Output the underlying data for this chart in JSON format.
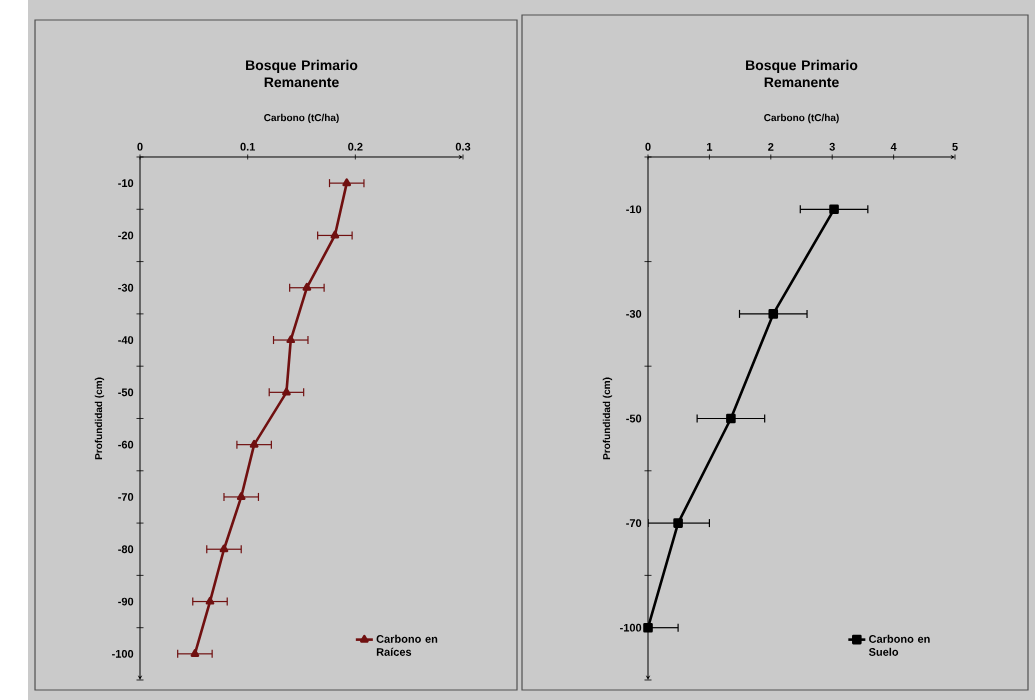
{
  "chart_data": [
    {
      "type": "line",
      "orientation": "horizontal",
      "title": "Bosque Primario Remanente",
      "xlabel": "Carbono (tC/ha)",
      "ylabel": "Profundidad (cm)",
      "categories": [
        "-10",
        "-20",
        "-30",
        "-40",
        "-50",
        "-60",
        "-70",
        "-80",
        "-90",
        "-100"
      ],
      "xlim": [
        0,
        0.3
      ],
      "xticks": [
        0,
        0.1,
        0.2,
        0.3
      ],
      "legend": "bottom right",
      "marker": "triangle",
      "grid": false,
      "series": [
        {
          "name": "Carbono en Raíces",
          "color": "#701010",
          "values": [
            0.192,
            0.181,
            0.155,
            0.14,
            0.136,
            0.106,
            0.094,
            0.078,
            0.065,
            0.051
          ],
          "errors": [
            0.016,
            0.016,
            0.016,
            0.016,
            0.016,
            0.016,
            0.016,
            0.016,
            0.016,
            0.016
          ]
        }
      ]
    },
    {
      "type": "line",
      "orientation": "horizontal",
      "title": "Bosque Primario Remanente",
      "xlabel": "Carbono (tC/ha)",
      "ylabel": "Profundidad (cm)",
      "categories": [
        "-10",
        "-30",
        "-50",
        "-70",
        "-100"
      ],
      "xlim": [
        0,
        5
      ],
      "xticks": [
        0,
        1,
        2,
        3,
        4,
        5
      ],
      "legend": "bottom right",
      "marker": "square",
      "grid": false,
      "series": [
        {
          "name": "Carbono en Suelo",
          "color": "#000000",
          "values": [
            3.03,
            2.04,
            1.35,
            0.49,
            0.0
          ],
          "errors": [
            0.55,
            0.55,
            0.55,
            [
              0,
              1.0
            ],
            [
              0,
              0.49
            ]
          ]
        }
      ]
    }
  ]
}
